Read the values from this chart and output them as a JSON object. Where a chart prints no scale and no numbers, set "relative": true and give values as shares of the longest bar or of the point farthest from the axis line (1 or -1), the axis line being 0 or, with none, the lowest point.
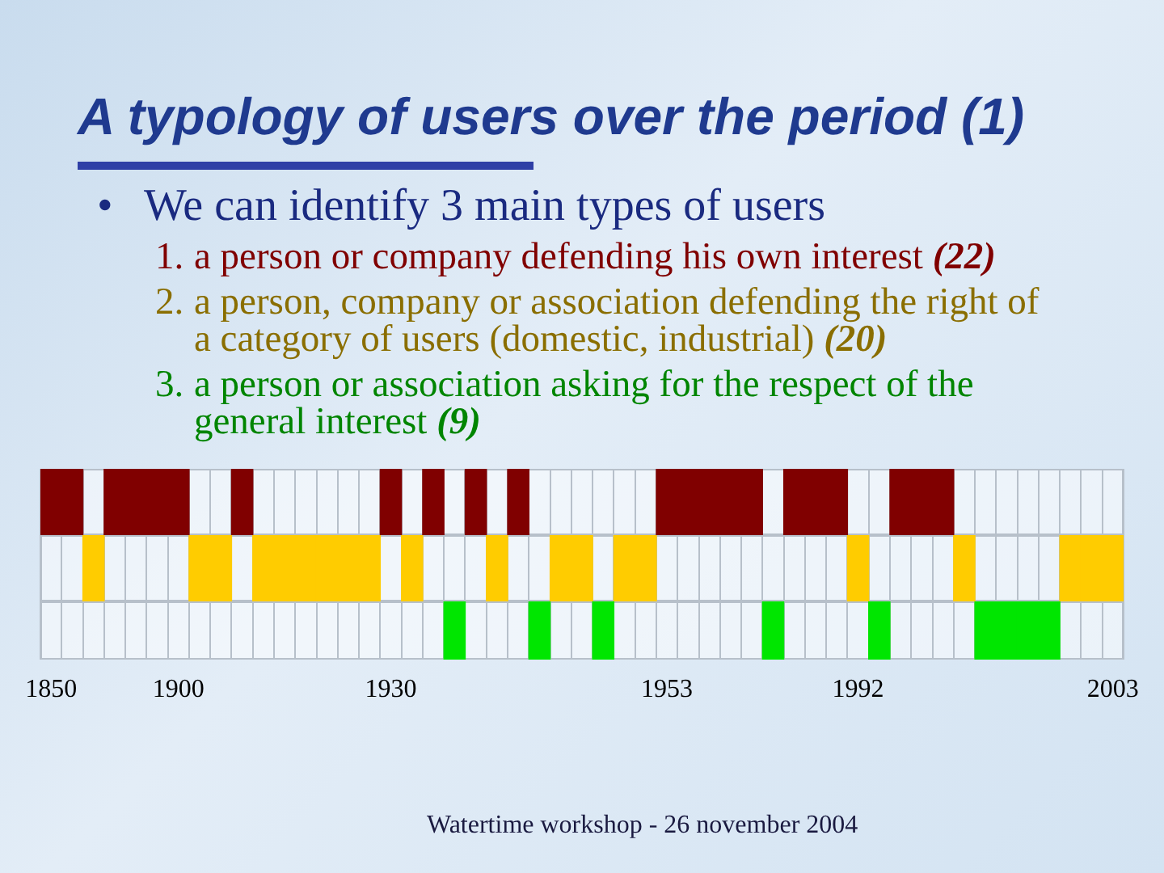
{
  "chart_data": [
    {
      "type": "bar",
      "title": "A typology of users over the period (1)",
      "subtitle": "• We can identify 3 main types of users",
      "annotations": [
        "1. a person or company defending his own interest (22)",
        "2. a person, company or association defending the right of a category of users (domestic, industrial) (20)",
        "3. a person or association asking for the respect of the general interest (9)",
        "Watertime workshop - 26 november 2004"
      ],
      "categories": [
        "1850",
        null,
        null,
        null,
        null,
        null,
        "1900",
        null,
        null,
        null,
        null,
        null,
        null,
        null,
        null,
        null,
        "1930",
        null,
        null,
        null,
        null,
        null,
        null,
        null,
        null,
        null,
        null,
        null,
        null,
        "1953",
        null,
        null,
        null,
        null,
        null,
        null,
        null,
        null,
        "1992",
        null,
        null,
        null,
        null,
        null,
        null,
        null,
        null,
        null,
        null,
        null,
        "2003"
      ],
      "values": [
        1,
        1,
        null,
        1,
        1,
        1,
        1,
        null,
        null,
        1,
        null,
        null,
        null,
        null,
        null,
        null,
        1,
        null,
        1,
        null,
        1,
        null,
        1,
        null,
        null,
        null,
        null,
        null,
        null,
        1,
        1,
        1,
        1,
        1,
        null,
        1,
        1,
        1,
        null,
        null,
        1,
        1,
        1,
        null,
        null,
        null,
        null,
        null,
        null,
        null,
        null
      ],
      "color": "#800000",
      "relative": true,
      "grid": "x",
      "tick_labels": false
    },
    {
      "type": "bar",
      "categories": [
        "1850",
        null,
        null,
        null,
        null,
        null,
        "1900",
        null,
        null,
        null,
        null,
        null,
        null,
        null,
        null,
        null,
        "1930",
        null,
        null,
        null,
        null,
        null,
        null,
        null,
        null,
        null,
        null,
        null,
        null,
        "1953",
        null,
        null,
        null,
        null,
        null,
        null,
        null,
        null,
        "1992",
        null,
        null,
        null,
        null,
        null,
        null,
        null,
        null,
        null,
        null,
        null,
        "2003"
      ],
      "values": [
        null,
        null,
        1,
        null,
        null,
        null,
        null,
        1,
        1,
        null,
        1,
        1,
        1,
        1,
        1,
        1,
        null,
        1,
        null,
        null,
        null,
        1,
        null,
        null,
        1,
        1,
        null,
        1,
        1,
        null,
        null,
        null,
        null,
        null,
        null,
        null,
        null,
        null,
        1,
        null,
        null,
        null,
        null,
        1,
        null,
        null,
        null,
        null,
        1,
        1,
        1
      ],
      "color": "#ffcc00",
      "relative": true,
      "grid": "x",
      "tick_labels": false
    },
    {
      "type": "bar",
      "categories": [
        "1850",
        null,
        null,
        null,
        null,
        null,
        "1900",
        null,
        null,
        null,
        null,
        null,
        null,
        null,
        null,
        null,
        "1930",
        null,
        null,
        null,
        null,
        null,
        null,
        null,
        null,
        null,
        null,
        null,
        null,
        "1953",
        null,
        null,
        null,
        null,
        null,
        null,
        null,
        null,
        "1992",
        null,
        null,
        null,
        null,
        null,
        null,
        null,
        null,
        null,
        null,
        null,
        "2003"
      ],
      "values": [
        null,
        null,
        null,
        null,
        null,
        null,
        null,
        null,
        null,
        null,
        null,
        null,
        null,
        null,
        null,
        null,
        null,
        null,
        null,
        1,
        null,
        null,
        null,
        1,
        null,
        null,
        1,
        null,
        null,
        null,
        null,
        null,
        null,
        null,
        1,
        null,
        null,
        null,
        null,
        1,
        null,
        null,
        null,
        null,
        1,
        1,
        1,
        1,
        null,
        null,
        null
      ],
      "color": "#00e600",
      "relative": true,
      "grid": "x",
      "tick_labels": "x"
    }
  ]
}
